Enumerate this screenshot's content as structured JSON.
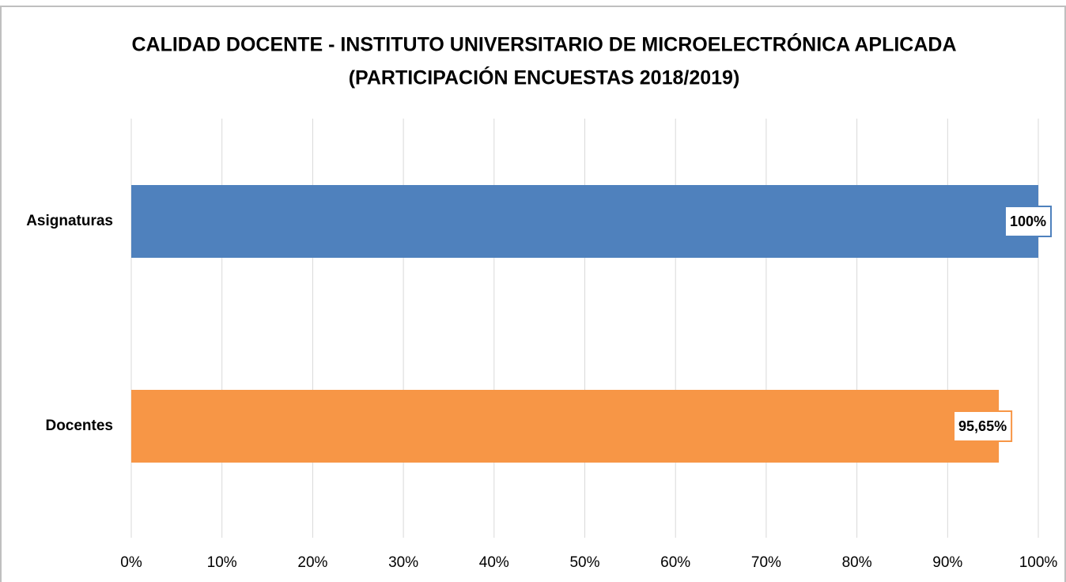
{
  "chart_data": {
    "type": "bar",
    "orientation": "horizontal",
    "title": "CALIDAD DOCENTE - INSTITUTO UNIVERSITARIO DE MICROELECTRÓNICA APLICADA",
    "subtitle": "(PARTICIPACIÓN ENCUESTAS 2018/2019)",
    "categories": [
      "Asignaturas",
      "Docentes"
    ],
    "values": [
      100,
      95.65
    ],
    "value_labels": [
      "100%",
      "95,65%"
    ],
    "colors": [
      "#4f81bd",
      "#f79646"
    ],
    "xlim": [
      0,
      100
    ],
    "xticks": [
      {
        "value": 0,
        "label": "0%"
      },
      {
        "value": 10,
        "label": "10%"
      },
      {
        "value": 20,
        "label": "20%"
      },
      {
        "value": 30,
        "label": "30%"
      },
      {
        "value": 40,
        "label": "40%"
      },
      {
        "value": 50,
        "label": "50%"
      },
      {
        "value": 60,
        "label": "60%"
      },
      {
        "value": 70,
        "label": "70%"
      },
      {
        "value": 80,
        "label": "80%"
      },
      {
        "value": 90,
        "label": "90%"
      },
      {
        "value": 100,
        "label": "100%"
      }
    ],
    "grid": true
  }
}
